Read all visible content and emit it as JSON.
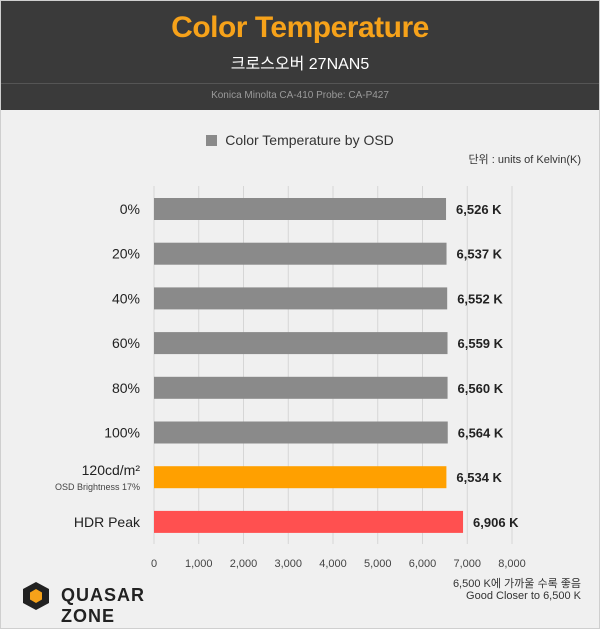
{
  "header": {
    "title": "Color Temperature",
    "subtitle": "크로스오버 27NAN5",
    "probe": "Konica Minolta CA-410 Probe: CA-P427"
  },
  "legend_label": "Color Temperature by OSD",
  "unit_note": "단위 : units of Kelvin(K)",
  "footnote": {
    "line1": "6,500 K에 가까울 수록 좋음",
    "line2": "Good Closer to 6,500 K"
  },
  "logo": {
    "text": "QUASAR ZONE",
    "icon": "quasar-hexagon-icon"
  },
  "colors": {
    "gray": "#8a8a8a",
    "orange": "#ffa000",
    "red": "#ff5050",
    "title": "#f6a21a"
  },
  "chart_data": {
    "type": "bar",
    "orientation": "horizontal",
    "title": "Color Temperature",
    "categories": [
      "0%",
      "20%",
      "40%",
      "60%",
      "80%",
      "100%",
      "120cd/m²",
      "HDR Peak"
    ],
    "category_sublabels": [
      "",
      "",
      "",
      "",
      "",
      "",
      "OSD Brightness 17%",
      ""
    ],
    "series": [
      {
        "name": "Color Temperature by OSD",
        "values": [
          6526,
          6537,
          6552,
          6559,
          6560,
          6564,
          6534,
          6906
        ]
      }
    ],
    "value_labels": [
      "6,526 K",
      "6,537 K",
      "6,552 K",
      "6,559 K",
      "6,560 K",
      "6,564 K",
      "6,534 K",
      "6,906 K"
    ],
    "bar_colors": [
      "#8a8a8a",
      "#8a8a8a",
      "#8a8a8a",
      "#8a8a8a",
      "#8a8a8a",
      "#8a8a8a",
      "#ffa000",
      "#ff5050"
    ],
    "xlim": [
      0,
      8000
    ],
    "xticks": [
      0,
      1000,
      2000,
      3000,
      4000,
      5000,
      6000,
      7000,
      8000
    ],
    "xtick_labels": [
      "0",
      "1,000",
      "2,000",
      "3,000",
      "4,000",
      "5,000",
      "6,000",
      "7,000",
      "8,000"
    ],
    "grid": true,
    "legend": "top-center"
  }
}
